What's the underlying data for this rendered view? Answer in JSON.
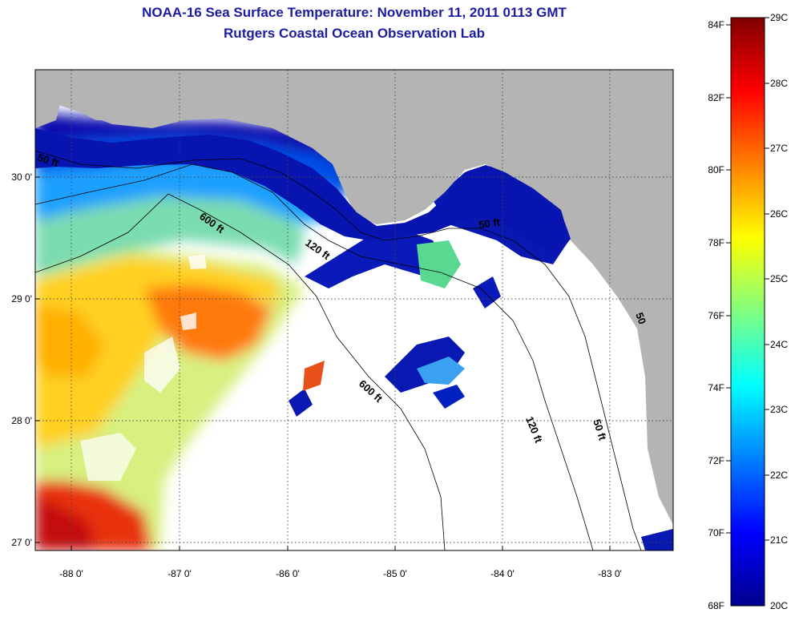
{
  "title": {
    "line1": "NOAA-16 Sea Surface Temperature:  November 11, 2011 0113 GMT",
    "line2": "Rutgers Coastal Ocean Observation Lab"
  },
  "map": {
    "longitude_labels": [
      "-88 0'",
      "-87 0'",
      "-86 0'",
      "-85 0'",
      "-84 0'",
      "-83 0'"
    ],
    "latitude_labels": [
      "30 0'",
      "29 0'",
      "28 0'",
      "27 0'"
    ],
    "depth_contour_labels": [
      "50 ft",
      "600 ft",
      "120 ft",
      "50 ft",
      "600 ft",
      "120 ft",
      "50 ft",
      "50"
    ],
    "colors": {
      "land": "#b4b4b4",
      "no_data": "#ffffff",
      "contour": "#000000"
    }
  },
  "colorbar": {
    "fahrenheit_labels": [
      "84F",
      "82F",
      "80F",
      "78F",
      "76F",
      "74F",
      "72F",
      "70F",
      "68F"
    ],
    "celsius_labels": [
      "29C",
      "28C",
      "27C",
      "26C",
      "25C",
      "24C",
      "23C",
      "22C",
      "21C",
      "20C"
    ],
    "colormap": [
      "#00008f",
      "#0000ff",
      "#0080ff",
      "#00ffff",
      "#80ff80",
      "#ffff00",
      "#ff8000",
      "#ff0000",
      "#800000"
    ]
  }
}
